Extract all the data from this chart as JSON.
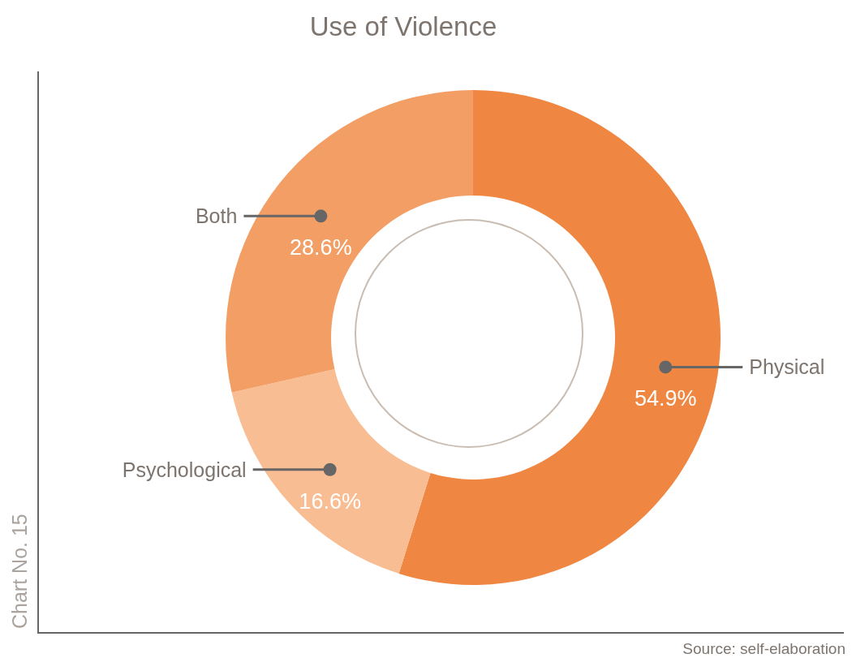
{
  "chart_data": {
    "type": "donut",
    "title": "Use of Violence",
    "categories": [
      "Physical",
      "Psychological",
      "Both"
    ],
    "values": [
      54.9,
      16.6,
      28.6
    ],
    "value_labels": [
      "54.9%",
      "16.6%",
      "28.6%"
    ],
    "colors": [
      "#ef8641",
      "#f8bd93",
      "#f29e65"
    ],
    "annotations": [
      "Chart No. 15",
      "Source: self-elaboration"
    ]
  }
}
